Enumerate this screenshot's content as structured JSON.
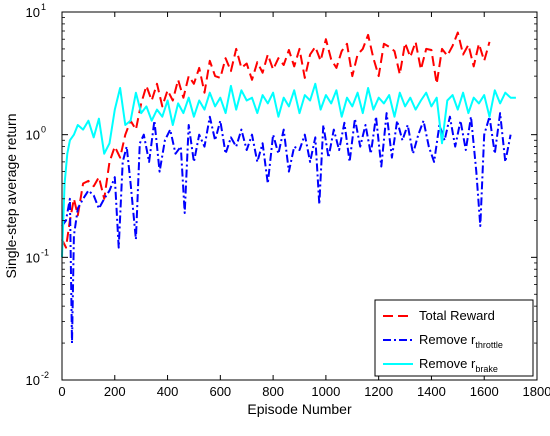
{
  "chart_data": {
    "type": "line",
    "title": "",
    "xlabel": "Episode Number",
    "ylabel": "Single-step average return",
    "xlim": [
      0,
      1800
    ],
    "ylim": [
      0.01,
      10
    ],
    "yscale": "log",
    "xticks": [
      "0",
      "200",
      "400",
      "600",
      "800",
      "1000",
      "1200",
      "1400",
      "1600",
      "1800"
    ],
    "xtick_values": [
      0,
      200,
      400,
      600,
      800,
      1000,
      1200,
      1400,
      1600,
      1800
    ],
    "yticks": [
      {
        "value": 0.01,
        "base": "10",
        "exp": "-2"
      },
      {
        "value": 0.1,
        "base": "10",
        "exp": "-1"
      },
      {
        "value": 1,
        "base": "10",
        "exp": "0"
      },
      {
        "value": 10,
        "base": "10",
        "exp": "1"
      }
    ],
    "grid": false,
    "legend_position": "bottom-right",
    "series": [
      {
        "name": "Total Reward",
        "label_main": "Total Reward",
        "label_sub": "",
        "color": "#ff0000",
        "dash": "10,5",
        "x": [
          0,
          15,
          30,
          45,
          60,
          80,
          100,
          120,
          140,
          160,
          180,
          200,
          220,
          240,
          260,
          280,
          300,
          320,
          340,
          360,
          380,
          400,
          420,
          440,
          460,
          480,
          500,
          520,
          540,
          560,
          580,
          600,
          620,
          640,
          660,
          680,
          700,
          720,
          740,
          760,
          780,
          800,
          820,
          840,
          860,
          880,
          900,
          920,
          940,
          960,
          980,
          1000,
          1020,
          1040,
          1060,
          1080,
          1100,
          1120,
          1140,
          1160,
          1180,
          1200,
          1220,
          1240,
          1260,
          1280,
          1300,
          1320,
          1340,
          1360,
          1380,
          1400,
          1420,
          1440,
          1460,
          1480,
          1500,
          1520,
          1540,
          1560,
          1580,
          1600,
          1620
        ],
        "y": [
          0.14,
          0.12,
          0.2,
          0.3,
          0.22,
          0.4,
          0.42,
          0.38,
          0.45,
          0.3,
          0.6,
          0.8,
          0.65,
          1.0,
          1.3,
          1.1,
          1.8,
          2.5,
          1.9,
          2.6,
          1.7,
          2.3,
          1.9,
          2.8,
          2.0,
          3.0,
          2.6,
          3.5,
          2.2,
          4.0,
          3.0,
          2.9,
          4.2,
          3.3,
          5.0,
          3.5,
          3.8,
          2.8,
          3.9,
          3.2,
          4.5,
          3.4,
          4.2,
          3.7,
          4.9,
          3.6,
          5.0,
          2.9,
          4.5,
          5.2,
          4.0,
          6.0,
          4.1,
          3.5,
          4.8,
          5.5,
          3.0,
          4.5,
          5.0,
          6.5,
          4.2,
          3.0,
          5.5,
          5.2,
          4.8,
          3.1,
          5.6,
          4.3,
          5.7,
          3.4,
          5.0,
          4.9,
          2.6,
          5.0,
          4.4,
          5.3,
          6.8,
          4.5,
          5.4,
          3.6,
          5.5,
          4.0,
          5.7
        ]
      },
      {
        "name": "Remove r_throttle",
        "label_main": "Remove r",
        "label_sub": "throttle",
        "color": "#0000ff",
        "dash": "8,3,2,3",
        "x": [
          0,
          15,
          30,
          38,
          45,
          60,
          80,
          100,
          120,
          140,
          160,
          180,
          200,
          215,
          230,
          245,
          260,
          280,
          295,
          310,
          330,
          350,
          370,
          390,
          410,
          430,
          450,
          465,
          480,
          500,
          520,
          540,
          560,
          580,
          600,
          620,
          640,
          660,
          680,
          700,
          720,
          740,
          760,
          780,
          800,
          820,
          840,
          860,
          880,
          900,
          920,
          940,
          960,
          975,
          990,
          1010,
          1030,
          1050,
          1070,
          1090,
          1110,
          1130,
          1150,
          1170,
          1190,
          1210,
          1230,
          1250,
          1270,
          1290,
          1310,
          1330,
          1350,
          1370,
          1390,
          1410,
          1430,
          1450,
          1470,
          1490,
          1510,
          1530,
          1550,
          1570,
          1585,
          1600,
          1620,
          1640,
          1660,
          1680,
          1700
        ],
        "y": [
          0.18,
          0.2,
          0.3,
          0.02,
          0.15,
          0.25,
          0.3,
          0.35,
          0.32,
          0.25,
          0.3,
          0.35,
          0.45,
          0.12,
          0.6,
          0.8,
          0.4,
          0.14,
          0.85,
          1.0,
          0.6,
          1.3,
          0.5,
          0.9,
          1.1,
          0.7,
          0.8,
          0.23,
          1.2,
          0.6,
          1.0,
          0.8,
          1.4,
          0.9,
          1.3,
          0.7,
          0.95,
          0.8,
          1.1,
          0.75,
          1.0,
          0.6,
          0.85,
          0.4,
          1.0,
          0.7,
          1.1,
          0.5,
          0.8,
          0.75,
          1.0,
          0.6,
          0.95,
          0.27,
          1.2,
          0.65,
          1.1,
          0.75,
          1.25,
          0.6,
          1.35,
          0.8,
          1.2,
          0.7,
          1.4,
          0.55,
          1.5,
          0.65,
          1.3,
          0.9,
          1.2,
          0.7,
          1.0,
          1.3,
          0.8,
          0.6,
          1.2,
          0.9,
          1.4,
          0.8,
          1.3,
          0.75,
          1.4,
          0.5,
          0.18,
          1.0,
          1.4,
          0.7,
          1.5,
          0.6,
          1.0
        ]
      },
      {
        "name": "Remove r_brake",
        "label_main": "Remove r",
        "label_sub": "brake",
        "color": "#00ffff",
        "dash": "",
        "x": [
          0,
          10,
          20,
          30,
          45,
          60,
          80,
          100,
          120,
          140,
          160,
          180,
          200,
          220,
          240,
          260,
          280,
          300,
          320,
          340,
          360,
          380,
          400,
          420,
          440,
          460,
          480,
          500,
          520,
          540,
          560,
          580,
          600,
          620,
          640,
          660,
          680,
          700,
          720,
          740,
          760,
          780,
          800,
          820,
          840,
          860,
          880,
          900,
          920,
          940,
          960,
          980,
          1000,
          1020,
          1040,
          1060,
          1080,
          1100,
          1120,
          1140,
          1160,
          1180,
          1200,
          1220,
          1240,
          1260,
          1280,
          1300,
          1320,
          1340,
          1360,
          1380,
          1400,
          1420,
          1440,
          1460,
          1480,
          1500,
          1520,
          1540,
          1560,
          1580,
          1600,
          1620,
          1640,
          1660,
          1680,
          1700,
          1720
        ],
        "y": [
          0.1,
          0.4,
          0.7,
          0.9,
          1.0,
          1.2,
          1.1,
          1.3,
          0.95,
          1.35,
          0.7,
          0.85,
          1.6,
          2.4,
          1.2,
          1.3,
          2.2,
          1.5,
          1.7,
          1.3,
          1.6,
          1.4,
          1.9,
          1.2,
          1.8,
          1.5,
          2.0,
          1.4,
          1.9,
          1.6,
          2.2,
          1.7,
          2.0,
          1.5,
          2.5,
          1.6,
          2.3,
          1.9,
          2.0,
          1.5,
          2.1,
          1.8,
          2.2,
          1.4,
          2.0,
          1.7,
          2.3,
          1.5,
          2.1,
          1.9,
          2.6,
          1.6,
          2.1,
          1.8,
          2.3,
          1.4,
          2.0,
          1.7,
          2.2,
          1.5,
          2.4,
          1.6,
          2.0,
          1.8,
          2.1,
          1.4,
          2.2,
          1.7,
          2.0,
          1.6,
          1.9,
          2.2,
          1.7,
          2.0,
          0.85,
          1.9,
          2.1,
          1.6,
          2.2,
          1.5,
          2.0,
          1.8,
          2.1,
          1.4,
          2.3,
          1.8,
          2.2,
          2.0,
          2.0
        ]
      }
    ]
  }
}
